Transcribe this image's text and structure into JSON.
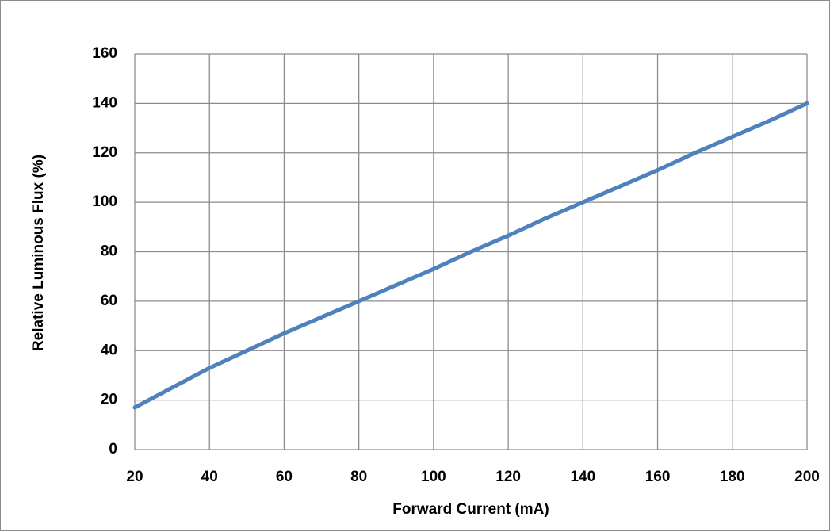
{
  "chart_data": {
    "type": "line",
    "title": "",
    "xlabel": "Forward Current (mA)",
    "ylabel": "Relative Luminous Flux  (%)",
    "xlim": [
      20,
      200
    ],
    "ylim": [
      0,
      160
    ],
    "x_ticks": [
      20,
      40,
      60,
      80,
      100,
      120,
      140,
      160,
      180,
      200
    ],
    "y_ticks": [
      0,
      20,
      40,
      60,
      80,
      100,
      120,
      140,
      160
    ],
    "grid": true,
    "legend": "none",
    "series": [
      {
        "color": "#4f81bd",
        "x": [
          20,
          30,
          40,
          50,
          60,
          70,
          80,
          90,
          100,
          110,
          120,
          130,
          140,
          150,
          160,
          170,
          180,
          190,
          200
        ],
        "y": [
          17,
          25,
          33,
          40,
          47,
          53.5,
          60,
          66.5,
          73,
          80,
          86.5,
          93.5,
          100,
          106.5,
          113,
          120,
          126.5,
          133,
          140
        ]
      }
    ]
  }
}
